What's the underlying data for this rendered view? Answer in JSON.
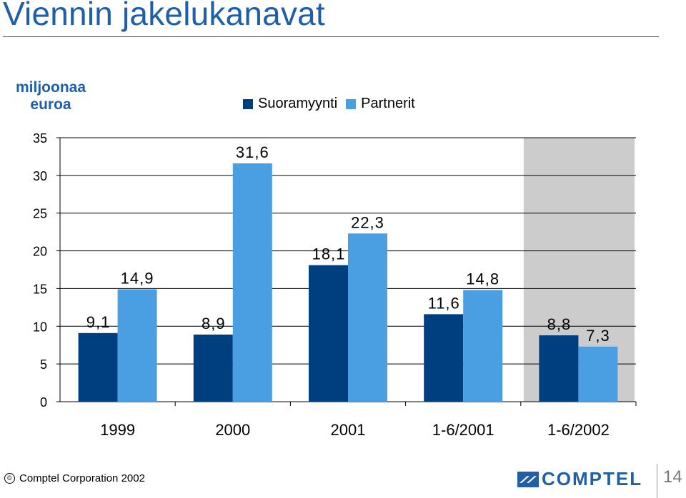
{
  "title": "Viennin jakelukanavat",
  "unit_label": "miljoonaa euroa",
  "legend": [
    {
      "label": "Suoramyynti",
      "color": "#003f7f"
    },
    {
      "label": "Partnerit",
      "color": "#4a9ee2"
    }
  ],
  "chart_data": {
    "type": "bar",
    "categories": [
      "1999",
      "2000",
      "2001",
      "1-6/2001",
      "1-6/2002"
    ],
    "series": [
      {
        "name": "Suoramyynti",
        "values": [
          9.1,
          8.9,
          18.1,
          11.6,
          8.8
        ],
        "labels": [
          "9,1",
          "8,9",
          "18,1",
          "11,6",
          "8,8"
        ],
        "color": "#003f7f"
      },
      {
        "name": "Partnerit",
        "values": [
          14.9,
          31.6,
          22.3,
          14.8,
          7.3
        ],
        "labels": [
          "14,9",
          "31,6",
          "22,3",
          "14,8",
          "7,3"
        ],
        "color": "#4a9ee2"
      }
    ],
    "ylim": [
      0,
      35
    ],
    "yticks": [
      0,
      5,
      10,
      15,
      20,
      25,
      30,
      35
    ],
    "grid": true,
    "highlight_category": "1-6/2002",
    "highlight_color": "#cccccc",
    "legend_position": "top"
  },
  "footer": {
    "copyright_symbol": "©",
    "copyright_text": "Comptel Corporation 2002",
    "logo_text": "COMPTEL",
    "page_number": "14"
  }
}
